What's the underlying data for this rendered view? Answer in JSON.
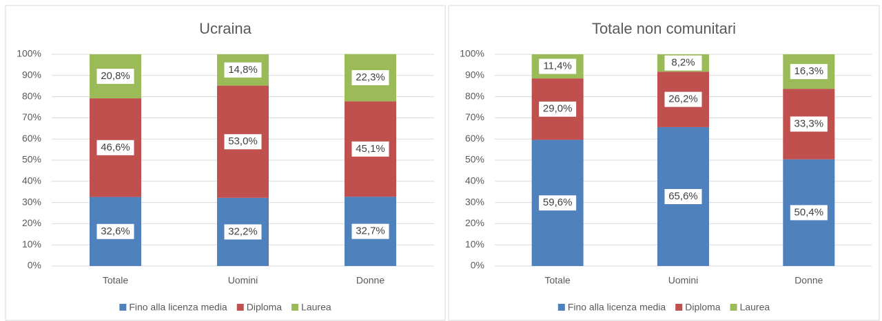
{
  "chart_data": [
    {
      "type": "bar",
      "stacked": true,
      "title": "Ucraina",
      "categories": [
        "Totale",
        "Uomini",
        "Donne"
      ],
      "series": [
        {
          "name": "Fino alla licenza media",
          "color": "#4f81bd",
          "values": [
            32.6,
            32.2,
            32.7
          ],
          "value_labels": [
            "32,6%",
            "32,2%",
            "32,7%"
          ]
        },
        {
          "name": "Diploma",
          "color": "#c0504d",
          "values": [
            46.6,
            53.0,
            45.1
          ],
          "value_labels": [
            "46,6%",
            "53,0%",
            "45,1%"
          ]
        },
        {
          "name": "Laurea",
          "color": "#9bbb59",
          "values": [
            20.8,
            14.8,
            22.3
          ],
          "value_labels": [
            "20,8%",
            "14,8%",
            "22,3%"
          ]
        }
      ],
      "ylim": [
        0,
        100
      ],
      "yticks": [
        {
          "value": 0,
          "label": "0%"
        },
        {
          "value": 10,
          "label": "10%"
        },
        {
          "value": 20,
          "label": "20%"
        },
        {
          "value": 30,
          "label": "30%"
        },
        {
          "value": 40,
          "label": "40%"
        },
        {
          "value": 50,
          "label": "50%"
        },
        {
          "value": 60,
          "label": "60%"
        },
        {
          "value": 70,
          "label": "70%"
        },
        {
          "value": 80,
          "label": "80%"
        },
        {
          "value": 90,
          "label": "90%"
        },
        {
          "value": 100,
          "label": "100%"
        }
      ],
      "grid": true,
      "legend": "bottom"
    },
    {
      "type": "bar",
      "stacked": true,
      "title": "Totale non comunitari",
      "categories": [
        "Totale",
        "Uomini",
        "Donne"
      ],
      "series": [
        {
          "name": "Fino alla licenza media",
          "color": "#4f81bd",
          "values": [
            59.6,
            65.6,
            50.4
          ],
          "value_labels": [
            "59,6%",
            "65,6%",
            "50,4%"
          ]
        },
        {
          "name": "Diploma",
          "color": "#c0504d",
          "values": [
            29.0,
            26.2,
            33.3
          ],
          "value_labels": [
            "29,0%",
            "26,2%",
            "33,3%"
          ]
        },
        {
          "name": "Laurea",
          "color": "#9bbb59",
          "values": [
            11.4,
            8.2,
            16.3
          ],
          "value_labels": [
            "11,4%",
            "8,2%",
            "16,3%"
          ]
        }
      ],
      "ylim": [
        0,
        100
      ],
      "yticks": [
        {
          "value": 0,
          "label": "0%"
        },
        {
          "value": 10,
          "label": "10%"
        },
        {
          "value": 20,
          "label": "20%"
        },
        {
          "value": 30,
          "label": "30%"
        },
        {
          "value": 40,
          "label": "40%"
        },
        {
          "value": 50,
          "label": "50%"
        },
        {
          "value": 60,
          "label": "60%"
        },
        {
          "value": 70,
          "label": "70%"
        },
        {
          "value": 80,
          "label": "80%"
        },
        {
          "value": 90,
          "label": "90%"
        },
        {
          "value": 100,
          "label": "100%"
        }
      ],
      "grid": true,
      "legend": "bottom"
    }
  ]
}
